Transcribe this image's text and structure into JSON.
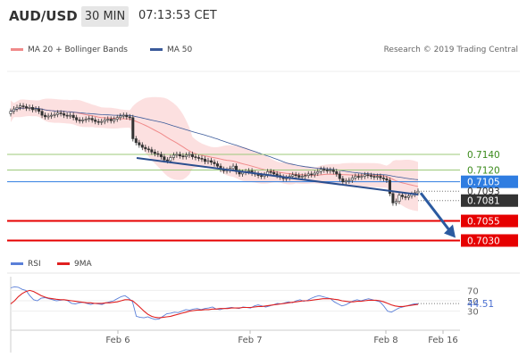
{
  "header": {
    "pair": "AUD/USD",
    "timeframe": "30 MIN",
    "time": "07:13:53 CET"
  },
  "legend": {
    "items": [
      {
        "label": "MA 20 + Bollinger Bands",
        "color": "#f08a8a"
      },
      {
        "label": "MA 50",
        "color": "#3a5a9a"
      }
    ],
    "credit": "Research © 2019 Trading Central"
  },
  "rsi_legend": {
    "items": [
      {
        "label": "RSI",
        "color": "#5a7fd8"
      },
      {
        "label": "9MA",
        "color": "#e02020"
      }
    ]
  },
  "chart_data": [
    {
      "type": "candlestick",
      "title": "AUD/USD 30 MIN",
      "ylim": [
        0.7018,
        0.7246
      ],
      "x_ticks": [
        "Feb 6",
        "Feb 7",
        "Feb 8",
        "Feb 16"
      ],
      "levels": [
        {
          "value": 0.714,
          "label": "0.7140",
          "style": "resistance",
          "color": "#9cc97a",
          "label_color": "#3a8a1a"
        },
        {
          "value": 0.712,
          "label": "0.7120",
          "style": "resistance",
          "color": "#9cc97a",
          "label_color": "#3a8a1a"
        },
        {
          "value": 0.7105,
          "label": "0.7105",
          "style": "pivot",
          "color": "#2f7de1",
          "label_color": "#ffffff"
        },
        {
          "value": 0.7093,
          "label": "0.7093",
          "style": "current",
          "color": "#666666",
          "label_color": "#333333"
        },
        {
          "value": 0.7081,
          "label": "0.7081",
          "style": "last",
          "color": "#333333",
          "label_color": "#ffffff"
        },
        {
          "value": 0.7055,
          "label": "0.7055",
          "style": "support",
          "color": "#e60000",
          "label_color": "#ffffff"
        },
        {
          "value": 0.703,
          "label": "0.7030",
          "style": "support",
          "color": "#e60000",
          "label_color": "#ffffff"
        }
      ],
      "series": [
        {
          "name": "MA 20 + Bollinger Bands",
          "color": "#f08a8a"
        },
        {
          "name": "MA 50",
          "color": "#3a5a9a"
        }
      ],
      "candles_close": [
        0.7195,
        0.7198,
        0.72,
        0.7202,
        0.7201,
        0.7199,
        0.72,
        0.7197,
        0.7198,
        0.7195,
        0.719,
        0.7188,
        0.7189,
        0.719,
        0.7191,
        0.7193,
        0.7192,
        0.719,
        0.7189,
        0.719,
        0.7187,
        0.7184,
        0.7183,
        0.7184,
        0.7185,
        0.7186,
        0.7184,
        0.7182,
        0.7181,
        0.7182,
        0.7184,
        0.7185,
        0.7183,
        0.7185,
        0.7187,
        0.7189,
        0.719,
        0.7188,
        0.7187,
        0.716,
        0.7155,
        0.7152,
        0.7149,
        0.7147,
        0.7146,
        0.7143,
        0.7141,
        0.714,
        0.7137,
        0.7133,
        0.7132,
        0.7136,
        0.7139,
        0.714,
        0.7138,
        0.7137,
        0.7139,
        0.714,
        0.7137,
        0.7136,
        0.7135,
        0.7134,
        0.7131,
        0.7132,
        0.713,
        0.7128,
        0.7125,
        0.7121,
        0.7119,
        0.712,
        0.7122,
        0.7125,
        0.7118,
        0.7115,
        0.7117,
        0.7118,
        0.7119,
        0.7116,
        0.7115,
        0.7113,
        0.7112,
        0.7114,
        0.7118,
        0.7117,
        0.7115,
        0.7113,
        0.7111,
        0.7109,
        0.711,
        0.7112,
        0.7114,
        0.7113,
        0.7111,
        0.7112,
        0.7113,
        0.7115,
        0.7114,
        0.7116,
        0.7118,
        0.7121,
        0.712,
        0.7119,
        0.712,
        0.7118,
        0.7115,
        0.7109,
        0.7105,
        0.7106,
        0.7107,
        0.711,
        0.7112,
        0.7111,
        0.7112,
        0.7114,
        0.7113,
        0.7112,
        0.7111,
        0.7112,
        0.711,
        0.7109,
        0.7107,
        0.709,
        0.7078,
        0.708,
        0.7088,
        0.7086,
        0.7085,
        0.7087,
        0.7089,
        0.7091,
        0.7093
      ],
      "trend_arrow": {
        "from": 0.7093,
        "to": 0.703
      }
    },
    {
      "type": "line",
      "title": "RSI",
      "ylim": [
        0,
        100
      ],
      "ticks": [
        {
          "value": 70,
          "label": "70"
        },
        {
          "value": 50,
          "label": "50"
        },
        {
          "value": 30,
          "label": "30"
        }
      ],
      "current": {
        "value": 44.51,
        "label": "44.51"
      },
      "series": [
        {
          "name": "RSI",
          "color": "#5a7fd8",
          "values": [
            75,
            77,
            76,
            72,
            70,
            60,
            52,
            50,
            55,
            56,
            54,
            52,
            50,
            51,
            52,
            50,
            45,
            44,
            46,
            47,
            45,
            43,
            45,
            44,
            43,
            46,
            48,
            50,
            54,
            58,
            60,
            55,
            48,
            20,
            18,
            17,
            19,
            16,
            14,
            15,
            20,
            25,
            26,
            28,
            27,
            30,
            33,
            32,
            34,
            35,
            33,
            35,
            36,
            38,
            34,
            33,
            35,
            36,
            37,
            36,
            35,
            38,
            37,
            36,
            40,
            42,
            40,
            38,
            40,
            42,
            45,
            44,
            46,
            48,
            46,
            50,
            52,
            49,
            51,
            55,
            58,
            60,
            58,
            56,
            54,
            48,
            44,
            40,
            42,
            46,
            50,
            52,
            50,
            52,
            54,
            52,
            50,
            48,
            40,
            30,
            28,
            32,
            36,
            38,
            40,
            42,
            44,
            44.51
          ]
        },
        {
          "name": "9MA",
          "color": "#e02020",
          "values": [
            44,
            50,
            58,
            64,
            68,
            70,
            68,
            64,
            60,
            57,
            55,
            54,
            53,
            52,
            52,
            51,
            50,
            49,
            48,
            47,
            46,
            46,
            45,
            45,
            45,
            46,
            46,
            47,
            48,
            50,
            52,
            52,
            50,
            44,
            37,
            30,
            24,
            20,
            18,
            17,
            18,
            19,
            20,
            22,
            24,
            26,
            28,
            30,
            31,
            32,
            32,
            33,
            33,
            34,
            34,
            35,
            35,
            35,
            36,
            36,
            36,
            37,
            37,
            37,
            38,
            39,
            39,
            40,
            41,
            42,
            43,
            44,
            45,
            46,
            47,
            48,
            49,
            50,
            50,
            51,
            52,
            53,
            54,
            54,
            54,
            53,
            52,
            50,
            49,
            48,
            48,
            49,
            49,
            50,
            51,
            51,
            51,
            50,
            48,
            45,
            42,
            40,
            39,
            39,
            40,
            41,
            42,
            43
          ]
        }
      ]
    }
  ]
}
